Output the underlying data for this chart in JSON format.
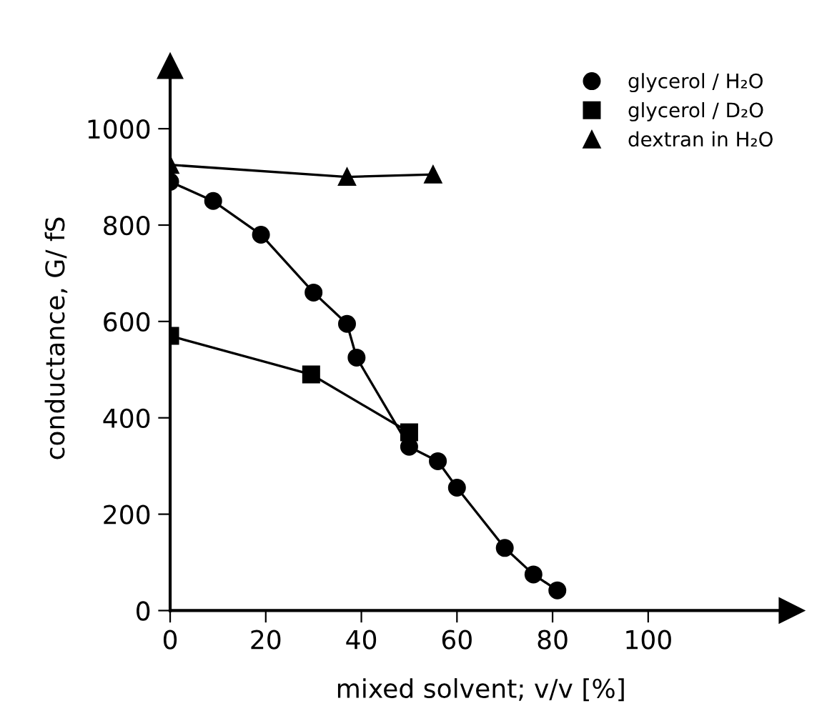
{
  "chart_data": {
    "type": "line",
    "xlabel": "mixed solvent; v/v [%]",
    "ylabel": "conductance, G/ fS",
    "xlim": [
      0,
      130
    ],
    "ylim": [
      0,
      1130
    ],
    "xticks": [
      0,
      20,
      40,
      60,
      80,
      100
    ],
    "yticks": [
      0,
      200,
      400,
      600,
      800,
      1000
    ],
    "grid": false,
    "legend": "top right",
    "line_style": "solid",
    "series": [
      {
        "name": "glycerol / H₂O",
        "color": "#000000",
        "marker": "circle",
        "x": [
          0,
          9,
          19,
          30,
          37,
          39,
          50,
          56,
          60,
          70,
          76,
          81
        ],
        "values": [
          890,
          850,
          780,
          660,
          595,
          525,
          340,
          310,
          255,
          130,
          75,
          42
        ]
      },
      {
        "name": "glycerol / D₂O",
        "color": "#000000",
        "marker": "square",
        "x": [
          0,
          29.5,
          50
        ],
        "values": [
          570,
          490,
          370
        ]
      },
      {
        "name": "dextran in H₂O",
        "color": "#000000",
        "marker": "triangle",
        "x": [
          0,
          37,
          55
        ],
        "values": [
          925,
          900,
          905
        ]
      }
    ]
  }
}
